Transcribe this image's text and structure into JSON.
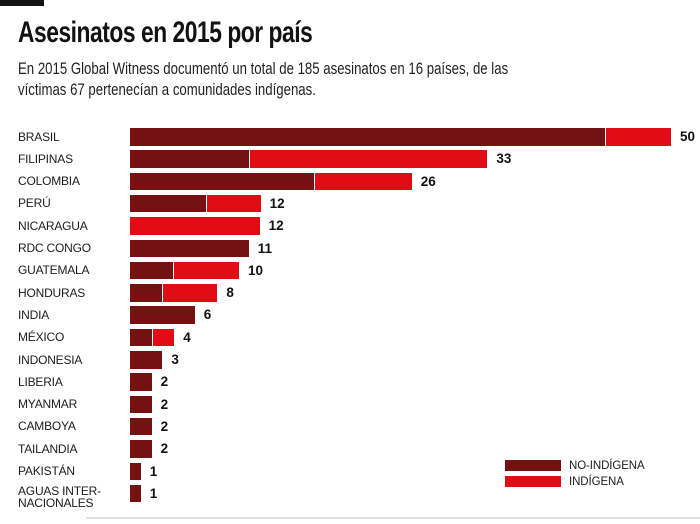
{
  "page": {
    "title": "Asesinatos en 2015 por país",
    "subtitle_lines": [
      "En 2015 Global Witness documentó un total de 185 asesinatos en 16 países, de las",
      "víctimas 67 pertenecían a comunidades indígenas."
    ]
  },
  "legend": {
    "items": [
      {
        "label": "NO-INDÍGENA",
        "color": "#731210"
      },
      {
        "label": "INDÍGENA",
        "color": "#E00D14"
      }
    ]
  },
  "chart_data": {
    "type": "bar",
    "orientation": "horizontal",
    "stacked": true,
    "title": "Asesinatos en 2015 por país",
    "categories": [
      "BRASIL",
      "FILIPINAS",
      "COLOMBIA",
      "PERÚ",
      "NICARAGUA",
      "RDC CONGO",
      "GUATEMALA",
      "HONDURAS",
      "INDIA",
      "MÉXICO",
      "INDONESIA",
      "LIBERIA",
      "MYANMAR",
      "CAMBOYA",
      "TAILANDIA",
      "PAKISTÁN",
      "AGUAS INTER-\nNACIONALES"
    ],
    "series": [
      {
        "name": "NO-INDÍGENA",
        "color": "#731210",
        "values": [
          44,
          11,
          17,
          7,
          0,
          11,
          4,
          3,
          6,
          2,
          3,
          2,
          2,
          2,
          2,
          1,
          1
        ]
      },
      {
        "name": "INDÍGENA",
        "color": "#E00D14",
        "values": [
          6,
          22,
          9,
          5,
          12,
          0,
          6,
          5,
          0,
          2,
          0,
          0,
          0,
          0,
          0,
          0,
          0
        ]
      }
    ],
    "totals": [
      50,
      33,
      26,
      12,
      12,
      11,
      10,
      8,
      6,
      4,
      3,
      2,
      2,
      2,
      2,
      1,
      1
    ],
    "xlim": [
      0,
      50
    ],
    "value_labels": true,
    "grid": false,
    "legend_position": "bottom-right"
  }
}
